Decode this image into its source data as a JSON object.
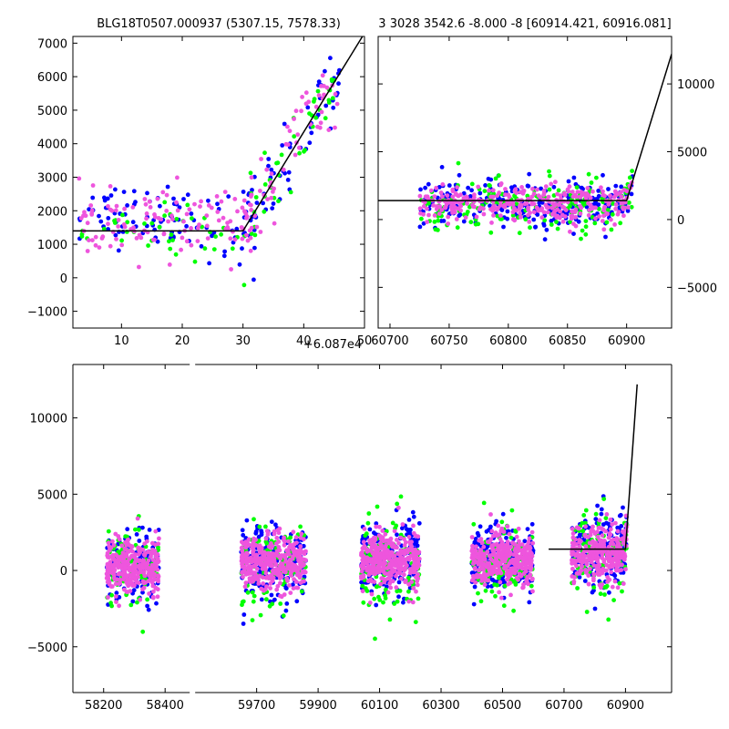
{
  "figure": {
    "background": "#ffffff",
    "colors": {
      "blue": "#0000ff",
      "green": "#00ff00",
      "pink": "#ee55dd",
      "model": "#000000"
    }
  },
  "chart_data": [
    {
      "type": "scatter",
      "title": "BLG18T0507.000937 (5307.15, 7578.33)",
      "xlim": [
        2,
        50
      ],
      "ylim": [
        -1500,
        7200
      ],
      "x_offset_label": "+6.087e4",
      "xticks": [
        10,
        20,
        30,
        40,
        50
      ],
      "yticks": [
        -1000,
        0,
        1000,
        2000,
        3000,
        4000,
        5000,
        6000,
        7000
      ],
      "model_line": [
        [
          2,
          1400
        ],
        [
          30,
          1400
        ],
        [
          50,
          7300
        ]
      ],
      "series": [
        {
          "color": "blue",
          "clusters": [
            {
              "xr": [
                3,
                22
              ],
              "yc": 1900,
              "ys": 450,
              "n": 70
            },
            {
              "xr": [
                22,
                32
              ],
              "yc": 1300,
              "ys": 600,
              "n": 25
            },
            {
              "xr": [
                30,
                46
              ],
              "yc": 3300,
              "ys": 900,
              "n": 60
            }
          ]
        },
        {
          "color": "green",
          "clusters": [
            {
              "xr": [
                3,
                22
              ],
              "yc": 1500,
              "ys": 350,
              "n": 30
            },
            {
              "xr": [
                22,
                32
              ],
              "yc": 1400,
              "ys": 600,
              "n": 15
            },
            {
              "xr": [
                30,
                46
              ],
              "yc": 3400,
              "ys": 800,
              "n": 40
            }
          ]
        },
        {
          "color": "pink",
          "clusters": [
            {
              "xr": [
                3,
                22
              ],
              "yc": 1600,
              "ys": 500,
              "n": 80
            },
            {
              "xr": [
                22,
                32
              ],
              "yc": 1700,
              "ys": 500,
              "n": 40
            },
            {
              "xr": [
                30,
                46
              ],
              "yc": 3500,
              "ys": 900,
              "n": 60
            }
          ]
        }
      ]
    },
    {
      "type": "scatter",
      "title": "3 3028 3542.6 -8.000 -8 [60914.421, 60916.081]",
      "xlim": [
        60690,
        60938
      ],
      "ylim": [
        -8000,
        13500
      ],
      "xticks": [
        60700,
        60750,
        60800,
        60850,
        60900
      ],
      "yticks": [
        -5000,
        0,
        5000,
        10000
      ],
      "yaxis_side": "right",
      "model_line": [
        [
          60690,
          1400
        ],
        [
          60900,
          1400
        ],
        [
          60938,
          12200
        ]
      ],
      "series": [
        {
          "color": "blue",
          "clusters": [
            {
              "xr": [
                60725,
                60905
              ],
              "yc": 1100,
              "ys": 900,
              "n": 260
            }
          ]
        },
        {
          "color": "green",
          "clusters": [
            {
              "xr": [
                60725,
                60905
              ],
              "yc": 1000,
              "ys": 1000,
              "n": 180
            }
          ]
        },
        {
          "color": "pink",
          "clusters": [
            {
              "xr": [
                60725,
                60905
              ],
              "yc": 1100,
              "ys": 700,
              "n": 320
            }
          ]
        }
      ]
    },
    {
      "type": "scatter",
      "title": "",
      "xlim": [
        58100,
        61050
      ],
      "ylim": [
        -8000,
        13500
      ],
      "xticks": [
        58200,
        58400,
        59700,
        59900,
        60100,
        60300,
        60500,
        60700,
        60900
      ],
      "yticks": [
        -5000,
        0,
        5000,
        10000
      ],
      "segments": [
        {
          "x0": 58100,
          "x1": 58480,
          "xticks": [
            58200,
            58400
          ]
        },
        {
          "x0": 59500,
          "x1": 61050,
          "xticks": [
            59700,
            59900,
            60100,
            60300,
            60500,
            60700,
            60900
          ]
        }
      ],
      "model_line": [
        [
          60650,
          1400
        ],
        [
          60900,
          1400
        ],
        [
          60938,
          12200
        ]
      ],
      "series": [
        {
          "color": "blue",
          "clusters": [
            {
              "xr": [
                58210,
                58380
              ],
              "yc": 300,
              "ys": 1100,
              "n": 160
            },
            {
              "xr": [
                59650,
                59860
              ],
              "yc": 500,
              "ys": 1200,
              "n": 200
            },
            {
              "xr": [
                60040,
                60230
              ],
              "yc": 700,
              "ys": 1200,
              "n": 200
            },
            {
              "xr": [
                60400,
                60600
              ],
              "yc": 700,
              "ys": 1200,
              "n": 200
            },
            {
              "xr": [
                60725,
                60905
              ],
              "yc": 1100,
              "ys": 1200,
              "n": 180
            }
          ]
        },
        {
          "color": "green",
          "clusters": [
            {
              "xr": [
                58210,
                58380
              ],
              "yc": 300,
              "ys": 1300,
              "n": 90
            },
            {
              "xr": [
                59650,
                59860
              ],
              "yc": 400,
              "ys": 1400,
              "n": 110
            },
            {
              "xr": [
                60040,
                60230
              ],
              "yc": 600,
              "ys": 1500,
              "n": 110
            },
            {
              "xr": [
                60400,
                60600
              ],
              "yc": 600,
              "ys": 1400,
              "n": 110
            },
            {
              "xr": [
                60725,
                60905
              ],
              "yc": 1000,
              "ys": 1400,
              "n": 100
            }
          ]
        },
        {
          "color": "pink",
          "clusters": [
            {
              "xr": [
                58210,
                58380
              ],
              "yc": 200,
              "ys": 900,
              "n": 300
            },
            {
              "xr": [
                59650,
                59860
              ],
              "yc": 500,
              "ys": 900,
              "n": 360
            },
            {
              "xr": [
                60040,
                60230
              ],
              "yc": 700,
              "ys": 900,
              "n": 360
            },
            {
              "xr": [
                60400,
                60600
              ],
              "yc": 700,
              "ys": 900,
              "n": 360
            },
            {
              "xr": [
                60725,
                60905
              ],
              "yc": 1000,
              "ys": 900,
              "n": 300
            }
          ]
        }
      ]
    }
  ]
}
